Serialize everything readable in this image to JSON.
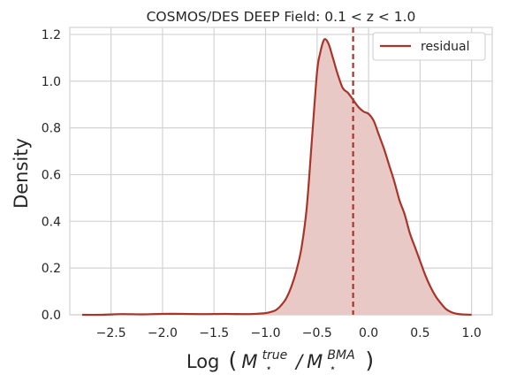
{
  "chart_data": {
    "type": "area",
    "title": "COSMOS/DES DEEP Field: 0.1 < z < 1.0",
    "ylabel": "Density",
    "xlabel": {
      "prefix": "Log",
      "numerator_base": "M",
      "numerator_sub": "⋆",
      "numerator_sup": "true",
      "slash": "/",
      "denominator_base": "M",
      "denominator_sub": "⋆",
      "denominator_sup": "BMA"
    },
    "xlim": [
      -2.9,
      1.2
    ],
    "ylim": [
      0.0,
      1.23
    ],
    "xticks": [
      -2.5,
      -2.0,
      -1.5,
      -1.0,
      -0.5,
      0.0,
      0.5,
      1.0
    ],
    "xtick_labels": [
      "−2.5",
      "−2.0",
      "−1.5",
      "−1.0",
      "−0.5",
      "0.0",
      "0.5",
      "1.0"
    ],
    "yticks": [
      0.0,
      0.2,
      0.4,
      0.6,
      0.8,
      1.0,
      1.2
    ],
    "ytick_labels": [
      "0.0",
      "0.2",
      "0.4",
      "0.6",
      "0.8",
      "1.0",
      "1.2"
    ],
    "grid": true,
    "legend": {
      "position": "top-right",
      "entries": [
        "residual"
      ]
    },
    "series": [
      {
        "name": "residual",
        "color": "#a8342a",
        "fill_color": "#e8c9c5",
        "x": [
          -2.78,
          -2.6,
          -2.4,
          -2.2,
          -2.0,
          -1.8,
          -1.6,
          -1.4,
          -1.2,
          -1.1,
          -1.0,
          -0.95,
          -0.9,
          -0.85,
          -0.8,
          -0.75,
          -0.7,
          -0.65,
          -0.6,
          -0.55,
          -0.5,
          -0.47,
          -0.44,
          -0.42,
          -0.4,
          -0.38,
          -0.36,
          -0.34,
          -0.3,
          -0.25,
          -0.2,
          -0.15,
          -0.1,
          -0.05,
          0.0,
          0.05,
          0.1,
          0.15,
          0.2,
          0.25,
          0.3,
          0.35,
          0.4,
          0.45,
          0.5,
          0.55,
          0.6,
          0.65,
          0.7,
          0.75,
          0.8,
          0.85,
          0.9,
          0.95,
          1.0
        ],
        "y": [
          0.0,
          0.0,
          0.003,
          0.002,
          0.004,
          0.004,
          0.003,
          0.004,
          0.003,
          0.004,
          0.007,
          0.012,
          0.02,
          0.04,
          0.07,
          0.12,
          0.19,
          0.29,
          0.46,
          0.75,
          1.04,
          1.12,
          1.17,
          1.18,
          1.17,
          1.15,
          1.12,
          1.09,
          1.03,
          0.97,
          0.95,
          0.92,
          0.89,
          0.87,
          0.86,
          0.83,
          0.77,
          0.71,
          0.64,
          0.57,
          0.49,
          0.43,
          0.35,
          0.29,
          0.23,
          0.17,
          0.12,
          0.08,
          0.05,
          0.025,
          0.012,
          0.005,
          0.002,
          0.001,
          0.0
        ]
      }
    ],
    "vline": {
      "x": -0.15,
      "style": "dashed",
      "color": "#a8342a"
    }
  }
}
